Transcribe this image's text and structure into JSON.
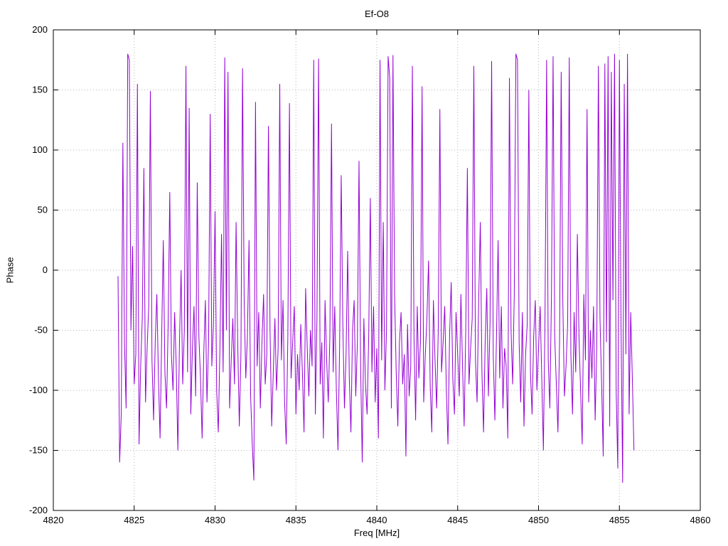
{
  "chart_data": {
    "type": "line",
    "title": "Ef-O8",
    "xlabel": "Freq [MHz]",
    "ylabel": "Phase",
    "xlim": [
      4820,
      4860
    ],
    "ylim": [
      -200,
      200
    ],
    "x_ticks": [
      4820,
      4825,
      4830,
      4835,
      4840,
      4845,
      4850,
      4855,
      4860
    ],
    "y_ticks": [
      -200,
      -150,
      -100,
      -50,
      0,
      50,
      100,
      150,
      200
    ],
    "grid": "dotted",
    "legend": "none",
    "colors": {
      "line": "#9400d3",
      "grid": "#b5b5b5",
      "border": "#000000",
      "background": "#ffffff"
    },
    "x_start": 4824.0,
    "x_step": 0.1,
    "values": [
      -5,
      -160,
      -120,
      106,
      -60,
      -115,
      180,
      175,
      -50,
      20,
      -95,
      -70,
      155,
      -145,
      -80,
      -40,
      85,
      -110,
      -65,
      -30,
      149,
      -75,
      -125,
      -60,
      -20,
      -90,
      -140,
      -55,
      25,
      -85,
      -115,
      -45,
      65,
      -70,
      -100,
      -35,
      -80,
      -150,
      -60,
      0,
      -95,
      -50,
      170,
      -85,
      135,
      -120,
      -65,
      -30,
      -105,
      73,
      -55,
      -90,
      -140,
      -70,
      -25,
      -110,
      -60,
      130,
      -80,
      -45,
      49,
      -100,
      -135,
      -65,
      30,
      -85,
      177,
      -50,
      165,
      -115,
      -75,
      -40,
      -95,
      40,
      -60,
      -130,
      -70,
      168,
      -25,
      -90,
      -55,
      25,
      -105,
      -145,
      -175,
      140,
      -80,
      -35,
      -115,
      -60,
      -20,
      -95,
      -70,
      120,
      -50,
      -130,
      -85,
      -40,
      -100,
      -65,
      155,
      -75,
      -25,
      -110,
      -145,
      -55,
      139,
      -90,
      -60,
      -30,
      -120,
      -70,
      -100,
      -45,
      -85,
      -135,
      -15,
      -65,
      -105,
      -50,
      -80,
      175,
      -120,
      -40,
      176,
      -95,
      -60,
      -140,
      -25,
      -75,
      -110,
      -55,
      122,
      -85,
      -30,
      -100,
      -150,
      -65,
      79,
      -45,
      -115,
      -70,
      16,
      -90,
      -135,
      -50,
      -25,
      -105,
      -60,
      91,
      -80,
      -160,
      -40,
      -95,
      -120,
      -55,
      60,
      -85,
      -30,
      -110,
      -65,
      -140,
      175,
      -75,
      40,
      -100,
      -50,
      178,
      160,
      -115,
      179,
      -20,
      -85,
      -130,
      -60,
      -35,
      -95,
      -70,
      -155,
      -45,
      -105,
      -80,
      170,
      -55,
      -125,
      -30,
      -90,
      -60,
      153,
      -110,
      -70,
      -40,
      8,
      -95,
      -135,
      -25,
      -75,
      -115,
      -50,
      134,
      -85,
      -60,
      -30,
      -100,
      -145,
      -55,
      -10,
      -90,
      -120,
      -35,
      -70,
      -105,
      -20,
      -80,
      -130,
      -50,
      85,
      -95,
      -65,
      -40,
      170,
      -75,
      -110,
      -25,
      40,
      -85,
      -135,
      -60,
      -15,
      -105,
      -45,
      174,
      -70,
      -125,
      -55,
      25,
      -90,
      -30,
      -115,
      -65,
      -80,
      -140,
      160,
      -50,
      -95,
      -20,
      180,
      175,
      -60,
      -110,
      -35,
      -130,
      -70,
      -45,
      150,
      -85,
      -120,
      -55,
      -25,
      -100,
      -65,
      -30,
      -90,
      -150,
      -40,
      175,
      -75,
      -115,
      -20,
      178,
      -55,
      -95,
      -135,
      -60,
      165,
      -25,
      -105,
      -80,
      -45,
      177,
      -70,
      -120,
      -35,
      -85,
      30,
      -55,
      -100,
      -145,
      -20,
      -75,
      134,
      -110,
      -50,
      -90,
      -30,
      -125,
      -65,
      170,
      -40,
      -95,
      -155,
      172,
      -60,
      178,
      -130,
      165,
      -25,
      180,
      -100,
      -165,
      175,
      -45,
      -177,
      155,
      -70,
      180,
      -120,
      -35,
      -90,
      -150
    ]
  }
}
